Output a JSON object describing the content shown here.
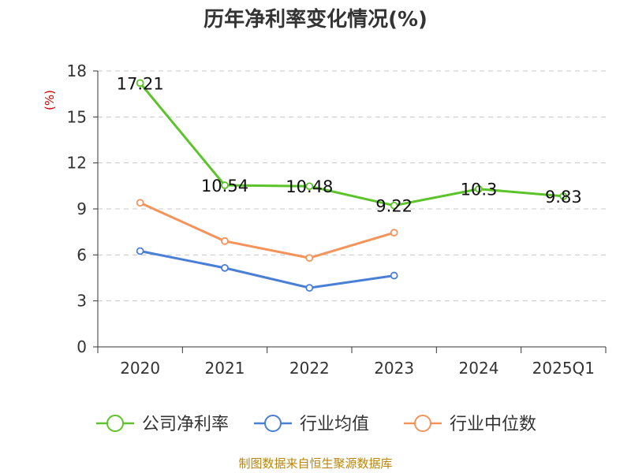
{
  "chart_data": {
    "type": "line",
    "title": "历年净利率变化情况(%)",
    "ylabel": "(%)",
    "categories": [
      "2020",
      "2021",
      "2022",
      "2023",
      "2024",
      "2025Q1"
    ],
    "y_ticks": [
      0,
      3,
      6,
      9,
      12,
      15,
      18
    ],
    "ylim": [
      0,
      18
    ],
    "grid": "horizontal-dashed",
    "legend_position": "bottom",
    "series": [
      {
        "name": "公司净利率",
        "color": "#5cc42a",
        "values": [
          17.21,
          10.54,
          10.48,
          9.22,
          10.3,
          9.83
        ],
        "labels": [
          "17.21",
          "10.54",
          "10.48",
          "9.22",
          "10.3",
          "9.83"
        ]
      },
      {
        "name": "行业均值",
        "color": "#4a7fd6",
        "values": [
          6.25,
          5.15,
          3.85,
          4.65,
          null,
          null
        ]
      },
      {
        "name": "行业中位数",
        "color": "#f4935a",
        "values": [
          9.4,
          6.9,
          5.8,
          7.45,
          null,
          null
        ]
      }
    ]
  },
  "source_text": "制图数据来自恒生聚源数据库"
}
